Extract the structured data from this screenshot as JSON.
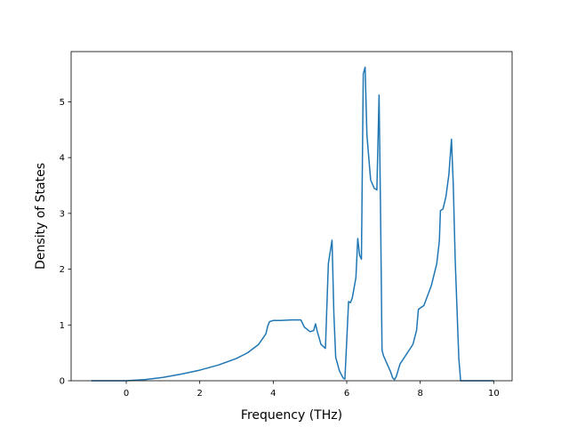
{
  "chart_data": {
    "type": "line",
    "xlabel": "Frequency (THz)",
    "ylabel": "Density of States",
    "xlim": [
      -1.5,
      10.5
    ],
    "ylim": [
      0,
      5.9
    ],
    "xticks": [
      0,
      2,
      4,
      6,
      8,
      10
    ],
    "yticks": [
      0,
      1,
      2,
      3,
      4,
      5
    ],
    "grid": false,
    "line_color": "#1f77b4",
    "series": [
      {
        "x": [
          -0.95,
          -0.5,
          0,
          0.5,
          1.0,
          1.5,
          2.0,
          2.5,
          3.0,
          3.3,
          3.6,
          3.8,
          3.85,
          3.9,
          4.0,
          4.2,
          4.5,
          4.75,
          4.85,
          5.0,
          5.1,
          5.15,
          5.2,
          5.3,
          5.42,
          5.5,
          5.6,
          5.65,
          5.7,
          5.8,
          5.9,
          5.95,
          6.0,
          6.05,
          6.1,
          6.15,
          6.25,
          6.3,
          6.35,
          6.4,
          6.45,
          6.5,
          6.55,
          6.65,
          6.75,
          6.82,
          6.88,
          6.92,
          6.96,
          7.0,
          7.1,
          7.2,
          7.25,
          7.3,
          7.35,
          7.45,
          7.6,
          7.8,
          7.9,
          7.95,
          8.1,
          8.3,
          8.45,
          8.52,
          8.55,
          8.62,
          8.7,
          8.78,
          8.85,
          8.9,
          8.95,
          9.05,
          9.1,
          9.5,
          10.0
        ],
        "y": [
          0.0,
          0.0,
          0.0,
          0.02,
          0.06,
          0.12,
          0.19,
          0.28,
          0.4,
          0.5,
          0.65,
          0.84,
          0.98,
          1.06,
          1.08,
          1.08,
          1.09,
          1.09,
          0.96,
          0.88,
          0.9,
          1.02,
          0.88,
          0.65,
          0.58,
          2.1,
          2.52,
          1.2,
          0.42,
          0.18,
          0.05,
          0.03,
          0.72,
          1.42,
          1.4,
          1.48,
          1.85,
          2.55,
          2.25,
          2.18,
          5.5,
          5.62,
          4.4,
          3.6,
          3.45,
          3.42,
          5.12,
          3.05,
          0.55,
          0.45,
          0.3,
          0.15,
          0.05,
          0.02,
          0.08,
          0.3,
          0.45,
          0.65,
          0.9,
          1.28,
          1.35,
          1.7,
          2.1,
          2.5,
          3.05,
          3.08,
          3.3,
          3.7,
          4.33,
          3.5,
          2.2,
          0.4,
          0.0,
          0.0,
          0.0
        ]
      }
    ]
  }
}
